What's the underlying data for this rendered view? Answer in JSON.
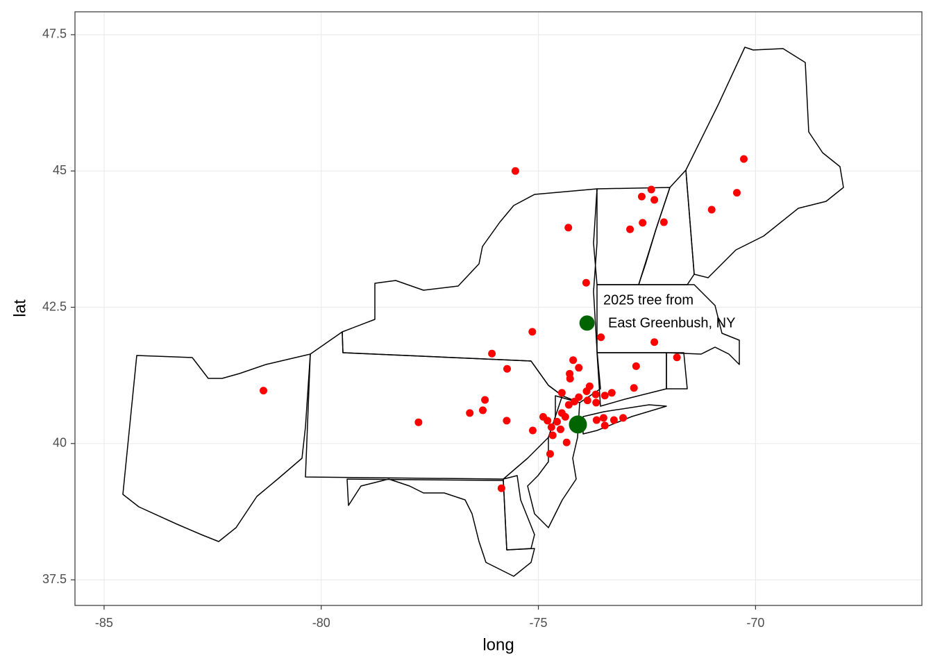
{
  "chart_data": {
    "type": "scatter",
    "xlabel": "long",
    "ylabel": "lat",
    "xlim": [
      -85.67,
      -66.17
    ],
    "ylim": [
      37.03,
      47.92
    ],
    "xticks": [
      -85,
      -80,
      -75,
      -70
    ],
    "yticks": [
      37.5,
      40.0,
      42.5,
      45.0,
      47.5
    ],
    "grid": true,
    "annotation": [
      "2025 tree from",
      "East Greenbush, NY"
    ],
    "series": [
      {
        "color": "#ff0000",
        "size": 5.5,
        "x": [
          -75.53,
          -81.33,
          -77.76,
          -76.58,
          -76.23,
          -76.28,
          -75.73,
          -76.07,
          -75.72,
          -75.14,
          -74.31,
          -73.9,
          -73.56,
          -72.62,
          -72.4,
          -72.33,
          -72.89,
          -72.6,
          -72.11,
          -71.01,
          -70.43,
          -70.27,
          -72.33,
          -71.81,
          -72.75,
          -72.8,
          -74.2,
          -74.07,
          -74.28,
          -74.27,
          -73.82,
          -73.89,
          -73.68,
          -73.47,
          -73.31,
          -73.87,
          -73.67,
          -74.07,
          -74.17,
          -74.3,
          -74.46,
          -74.38,
          -74.89,
          -74.79,
          -74.7,
          -74.57,
          -74.67,
          -74.49,
          -74.35,
          -75.13,
          -74.73,
          -75.85,
          -73.66,
          -73.5,
          -73.47,
          -73.26,
          -73.05,
          -74.46
        ],
        "values": [
          45.0,
          40.97,
          40.39,
          40.56,
          40.8,
          40.61,
          40.42,
          41.65,
          41.37,
          42.05,
          43.96,
          42.95,
          41.95,
          44.53,
          44.66,
          44.47,
          43.93,
          44.05,
          44.06,
          44.29,
          44.6,
          45.22,
          41.86,
          41.58,
          41.42,
          41.02,
          41.53,
          41.39,
          41.28,
          41.19,
          41.05,
          40.96,
          40.9,
          40.88,
          40.93,
          40.79,
          40.75,
          40.85,
          40.77,
          40.71,
          40.93,
          40.49,
          40.49,
          40.42,
          40.3,
          40.4,
          40.15,
          40.26,
          40.02,
          40.24,
          39.81,
          39.18,
          40.43,
          40.47,
          40.33,
          40.43,
          40.47,
          40.56
        ]
      },
      {
        "color": "#006400",
        "x": [
          -73.88,
          -74.09
        ],
        "values": [
          42.21,
          40.35
        ],
        "sizes": [
          11,
          13
        ]
      }
    ]
  }
}
